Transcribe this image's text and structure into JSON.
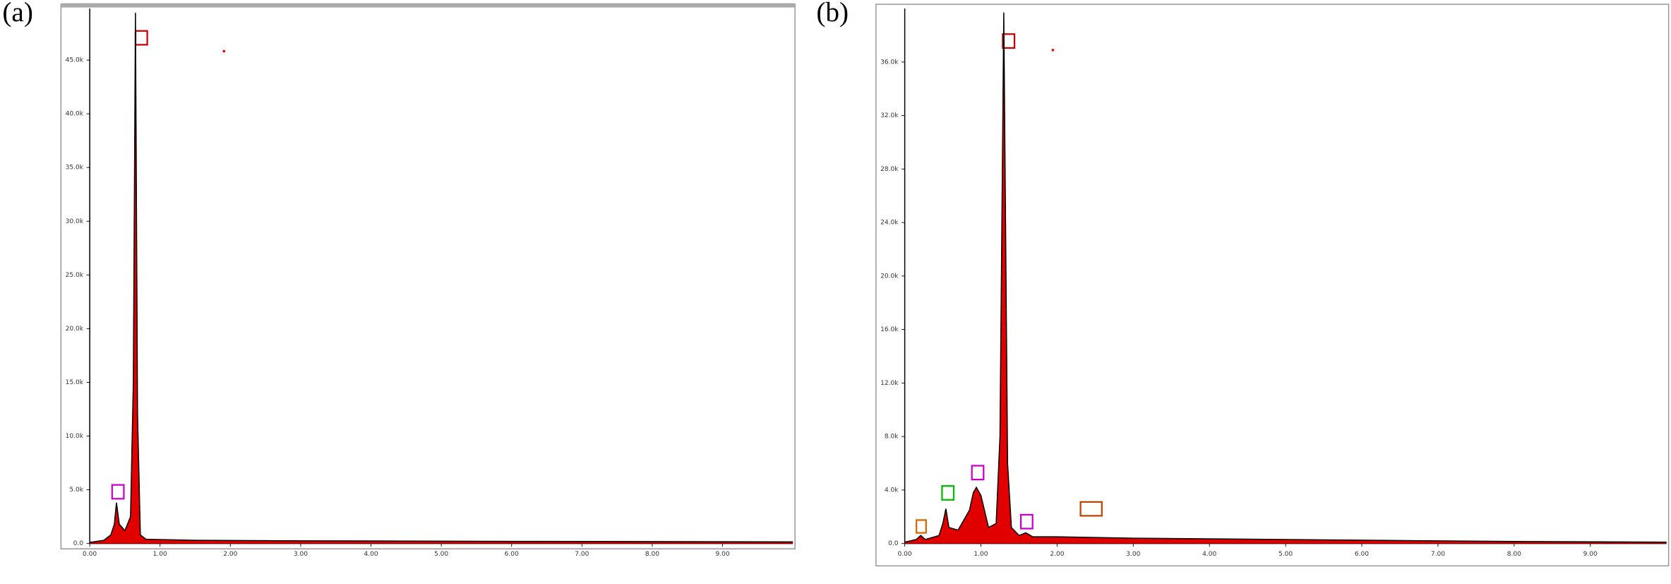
{
  "chart_data": [
    {
      "type": "area",
      "label": "(a)",
      "color": "#e00000",
      "outline": "#000000",
      "x": [
        0,
        0.2,
        0.3,
        0.35,
        0.38,
        0.42,
        0.5,
        0.58,
        0.62,
        0.65,
        0.68,
        0.72,
        0.8,
        1.5,
        3,
        6,
        10
      ],
      "values": [
        100,
        300,
        800,
        1800,
        3800,
        1800,
        1200,
        2500,
        15000,
        49400,
        12000,
        800,
        400,
        300,
        250,
        200,
        150
      ],
      "xlim": [
        0,
        10
      ],
      "xticks": [
        {
          "value": 0,
          "label": "0.00"
        },
        {
          "value": 1,
          "label": "1.00"
        },
        {
          "value": 2,
          "label": "2.00"
        },
        {
          "value": 3,
          "label": "3.00"
        },
        {
          "value": 4,
          "label": "4.00"
        },
        {
          "value": 5,
          "label": "5.00"
        },
        {
          "value": 6,
          "label": "6.00"
        },
        {
          "value": 7,
          "label": "7.00"
        },
        {
          "value": 8,
          "label": "8.00"
        },
        {
          "value": 9,
          "label": "9.00"
        }
      ],
      "ylim": [
        0,
        49800
      ],
      "yticks": [
        {
          "value": 0,
          "label": "0.0"
        },
        {
          "value": 5000,
          "label": "5.0k"
        },
        {
          "value": 10000,
          "label": "10.0k"
        },
        {
          "value": 15000,
          "label": "15.0k"
        },
        {
          "value": 20000,
          "label": "20.0k"
        },
        {
          "value": 25000,
          "label": "25.0k"
        },
        {
          "value": 30000,
          "label": "30.0k"
        },
        {
          "value": 35000,
          "label": "35.0k"
        },
        {
          "value": 40000,
          "label": "40.0k"
        },
        {
          "value": 45000,
          "label": "45.0k"
        }
      ]
    },
    {
      "type": "area",
      "label": "(b)",
      "color": "#e00000",
      "outline": "#000000",
      "x": [
        0,
        0.15,
        0.21,
        0.27,
        0.45,
        0.5,
        0.54,
        0.58,
        0.7,
        0.85,
        0.9,
        0.94,
        1.0,
        1.1,
        1.2,
        1.25,
        1.3,
        1.35,
        1.4,
        1.5,
        1.59,
        1.68,
        2,
        3,
        5,
        8,
        10
      ],
      "values": [
        100,
        300,
        600,
        300,
        600,
        1500,
        2600,
        1200,
        1000,
        2500,
        3800,
        4200,
        3600,
        1200,
        1500,
        8000,
        39700,
        6000,
        1200,
        600,
        800,
        500,
        500,
        400,
        300,
        150,
        100
      ],
      "xlim": [
        0,
        10
      ],
      "xticks": [
        {
          "value": 0,
          "label": "0.00"
        },
        {
          "value": 1,
          "label": "1.00"
        },
        {
          "value": 2,
          "label": "2.00"
        },
        {
          "value": 3,
          "label": "3.00"
        },
        {
          "value": 4,
          "label": "4.00"
        },
        {
          "value": 5,
          "label": "5.00"
        },
        {
          "value": 6,
          "label": "6.00"
        },
        {
          "value": 7,
          "label": "7.00"
        },
        {
          "value": 8,
          "label": "8.00"
        },
        {
          "value": 9,
          "label": "9.00"
        }
      ],
      "ylim": [
        0,
        40000
      ],
      "yticks": [
        {
          "value": 0,
          "label": "0.0"
        },
        {
          "value": 4000,
          "label": "4.0k"
        },
        {
          "value": 8000,
          "label": "8.0k"
        },
        {
          "value": 12000,
          "label": "12.0k"
        },
        {
          "value": 16000,
          "label": "16.0k"
        },
        {
          "value": 20000,
          "label": "20.0k"
        },
        {
          "value": 24000,
          "label": "24.0k"
        },
        {
          "value": 28000,
          "label": "28.0k"
        },
        {
          "value": 32000,
          "label": "32.0k"
        },
        {
          "value": 36000,
          "label": "36.0k"
        }
      ]
    }
  ]
}
